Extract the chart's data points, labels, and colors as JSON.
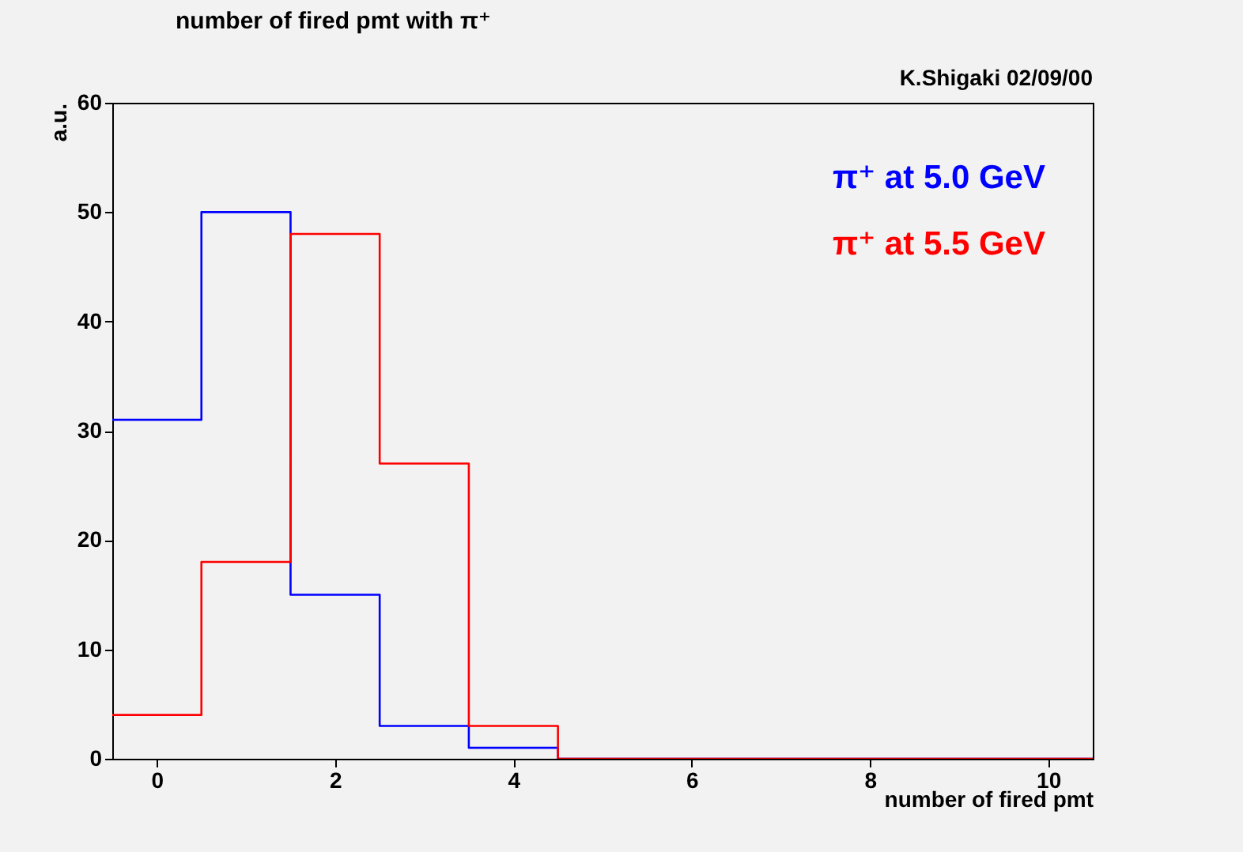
{
  "chart_data": {
    "type": "histogram",
    "title": "number of fired pmt with π⁺",
    "xlabel": "number of fired pmt",
    "ylabel": "a.u.",
    "annotations": [
      "K.Shigaki 02/09/00"
    ],
    "bins": [
      -0.5,
      0.5,
      1.5,
      2.5,
      3.5,
      4.5,
      5.5,
      6.5,
      7.5,
      8.5,
      9.5,
      10.5
    ],
    "series": [
      {
        "name": "π⁺ at 5.0 GeV",
        "color": "#0000ff",
        "values": [
          31,
          50,
          15,
          3,
          1,
          0,
          0,
          0,
          0,
          0,
          0
        ]
      },
      {
        "name": "π⁺ at 5.5 GeV",
        "color": "#ff0000",
        "values": [
          4,
          18,
          48,
          27,
          3,
          0,
          0,
          0,
          0,
          0,
          0
        ]
      }
    ],
    "xlim": [
      -0.5,
      10.5
    ],
    "xticks": [
      0,
      2,
      4,
      6,
      8,
      10
    ],
    "ylim": [
      0,
      60
    ],
    "yticks": [
      0,
      10,
      20,
      30,
      40,
      50,
      60
    ],
    "grid": false,
    "legend": "top right"
  }
}
